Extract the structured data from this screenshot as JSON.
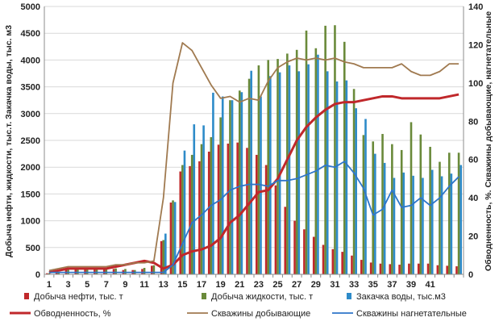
{
  "chart_data": {
    "type": "bar",
    "title": "",
    "x": [
      1,
      2,
      3,
      4,
      5,
      6,
      7,
      8,
      9,
      10,
      11,
      12,
      13,
      14,
      15,
      16,
      17,
      18,
      19,
      20,
      21,
      22,
      23,
      24,
      25,
      26,
      27,
      28,
      29,
      30,
      31,
      32,
      33,
      34,
      35,
      36,
      37,
      38,
      39,
      40,
      41,
      42,
      43,
      44
    ],
    "x_tick_labels": [
      "1",
      "3",
      "5",
      "7",
      "9",
      "11",
      "13",
      "15",
      "17",
      "19",
      "21",
      "23",
      "25",
      "27",
      "29",
      "31",
      "33",
      "35",
      "37",
      "39",
      "41"
    ],
    "ylabel_left": "Добыча нефти, жидкости, тыс.т. Закачка воды, тыс. м3",
    "ylabel_right": "Обводненность, %. Скважины добывающие, нагнетательные",
    "ylim_left": [
      0,
      5000
    ],
    "ylim_right": [
      0,
      140
    ],
    "y_ticks_left": [
      "0",
      "500",
      "1000",
      "1500",
      "2000",
      "2500",
      "3000",
      "3500",
      "4000",
      "4500",
      "5000"
    ],
    "y_ticks_right": [
      "0",
      "20",
      "40",
      "60",
      "80",
      "100",
      "120",
      "140"
    ],
    "grid": true,
    "legend_position": "bottom",
    "series": [
      {
        "name": "Добыча нефти, тыс. т",
        "type": "bar",
        "axis": "left",
        "color": "#c0282b",
        "values": [
          20,
          40,
          110,
          110,
          110,
          100,
          100,
          100,
          80,
          80,
          100,
          160,
          620,
          1340,
          1920,
          2020,
          2110,
          2290,
          2420,
          2440,
          2460,
          2360,
          2230,
          2040,
          1660,
          1260,
          1000,
          840,
          700,
          550,
          470,
          420,
          350,
          270,
          220,
          200,
          190,
          180,
          200,
          200,
          200,
          170,
          160,
          150
        ]
      },
      {
        "name": "Добыча жидкости, тыс. т",
        "type": "bar",
        "axis": "left",
        "color": "#6a8a3a",
        "values": [
          20,
          40,
          120,
          120,
          120,
          100,
          100,
          110,
          100,
          80,
          120,
          170,
          640,
          1380,
          2040,
          2230,
          2430,
          2560,
          2930,
          3250,
          3430,
          3650,
          3900,
          4000,
          4020,
          4120,
          4190,
          4550,
          4220,
          4640,
          4650,
          4340,
          3460,
          2600,
          2480,
          2620,
          2430,
          2320,
          2840,
          2610,
          2380,
          2100,
          2270,
          2270
        ]
      },
      {
        "name": "Закачка воды, тыс.м3",
        "type": "bar",
        "axis": "left",
        "color": "#2e8bc9",
        "values": [
          0,
          0,
          0,
          0,
          0,
          0,
          0,
          0,
          0,
          0,
          0,
          0,
          760,
          1350,
          2310,
          2800,
          2780,
          3390,
          3320,
          3250,
          3400,
          3800,
          3320,
          3700,
          3770,
          3900,
          3790,
          3920,
          4100,
          3790,
          3600,
          3620,
          3100,
          2900,
          2250,
          2080,
          1800,
          1900,
          1840,
          1800,
          1950,
          1830,
          1880,
          2040
        ]
      },
      {
        "name": "Обводненность, %",
        "type": "line",
        "axis": "right",
        "color": "#c0282b",
        "values": [
          1,
          2,
          3,
          3,
          3,
          3,
          3,
          4,
          5,
          6,
          7,
          6,
          3,
          5,
          10,
          12,
          13,
          15,
          19,
          27,
          31,
          37,
          43,
          44,
          50,
          60,
          70,
          77,
          82,
          86,
          89,
          90,
          90,
          91,
          92,
          93,
          93,
          92,
          92,
          92,
          92,
          92,
          93,
          94
        ]
      },
      {
        "name": "Скважины добывающие",
        "type": "line",
        "axis": "right",
        "color": "#a07a50",
        "values": [
          2,
          3,
          4,
          4,
          4,
          4,
          4,
          5,
          5,
          6,
          6,
          7,
          40,
          100,
          121,
          117,
          108,
          99,
          92,
          93,
          90,
          92,
          91,
          101,
          108,
          111,
          113,
          112,
          113,
          112,
          113,
          111,
          110,
          108,
          108,
          108,
          108,
          110,
          106,
          104,
          104,
          106,
          110,
          110
        ]
      },
      {
        "name": "Скважины нагнетательные",
        "type": "line",
        "axis": "right",
        "color": "#2e75c9",
        "values": [
          1,
          1,
          1,
          1,
          1,
          1,
          1,
          1,
          1,
          1,
          1,
          1,
          1,
          5,
          16,
          27,
          31,
          36,
          39,
          44,
          46,
          47,
          47,
          46,
          49,
          49,
          50,
          52,
          54,
          57,
          56,
          59,
          53,
          45,
          31,
          34,
          44,
          35,
          36,
          40,
          36,
          40,
          46,
          51
        ]
      }
    ]
  }
}
